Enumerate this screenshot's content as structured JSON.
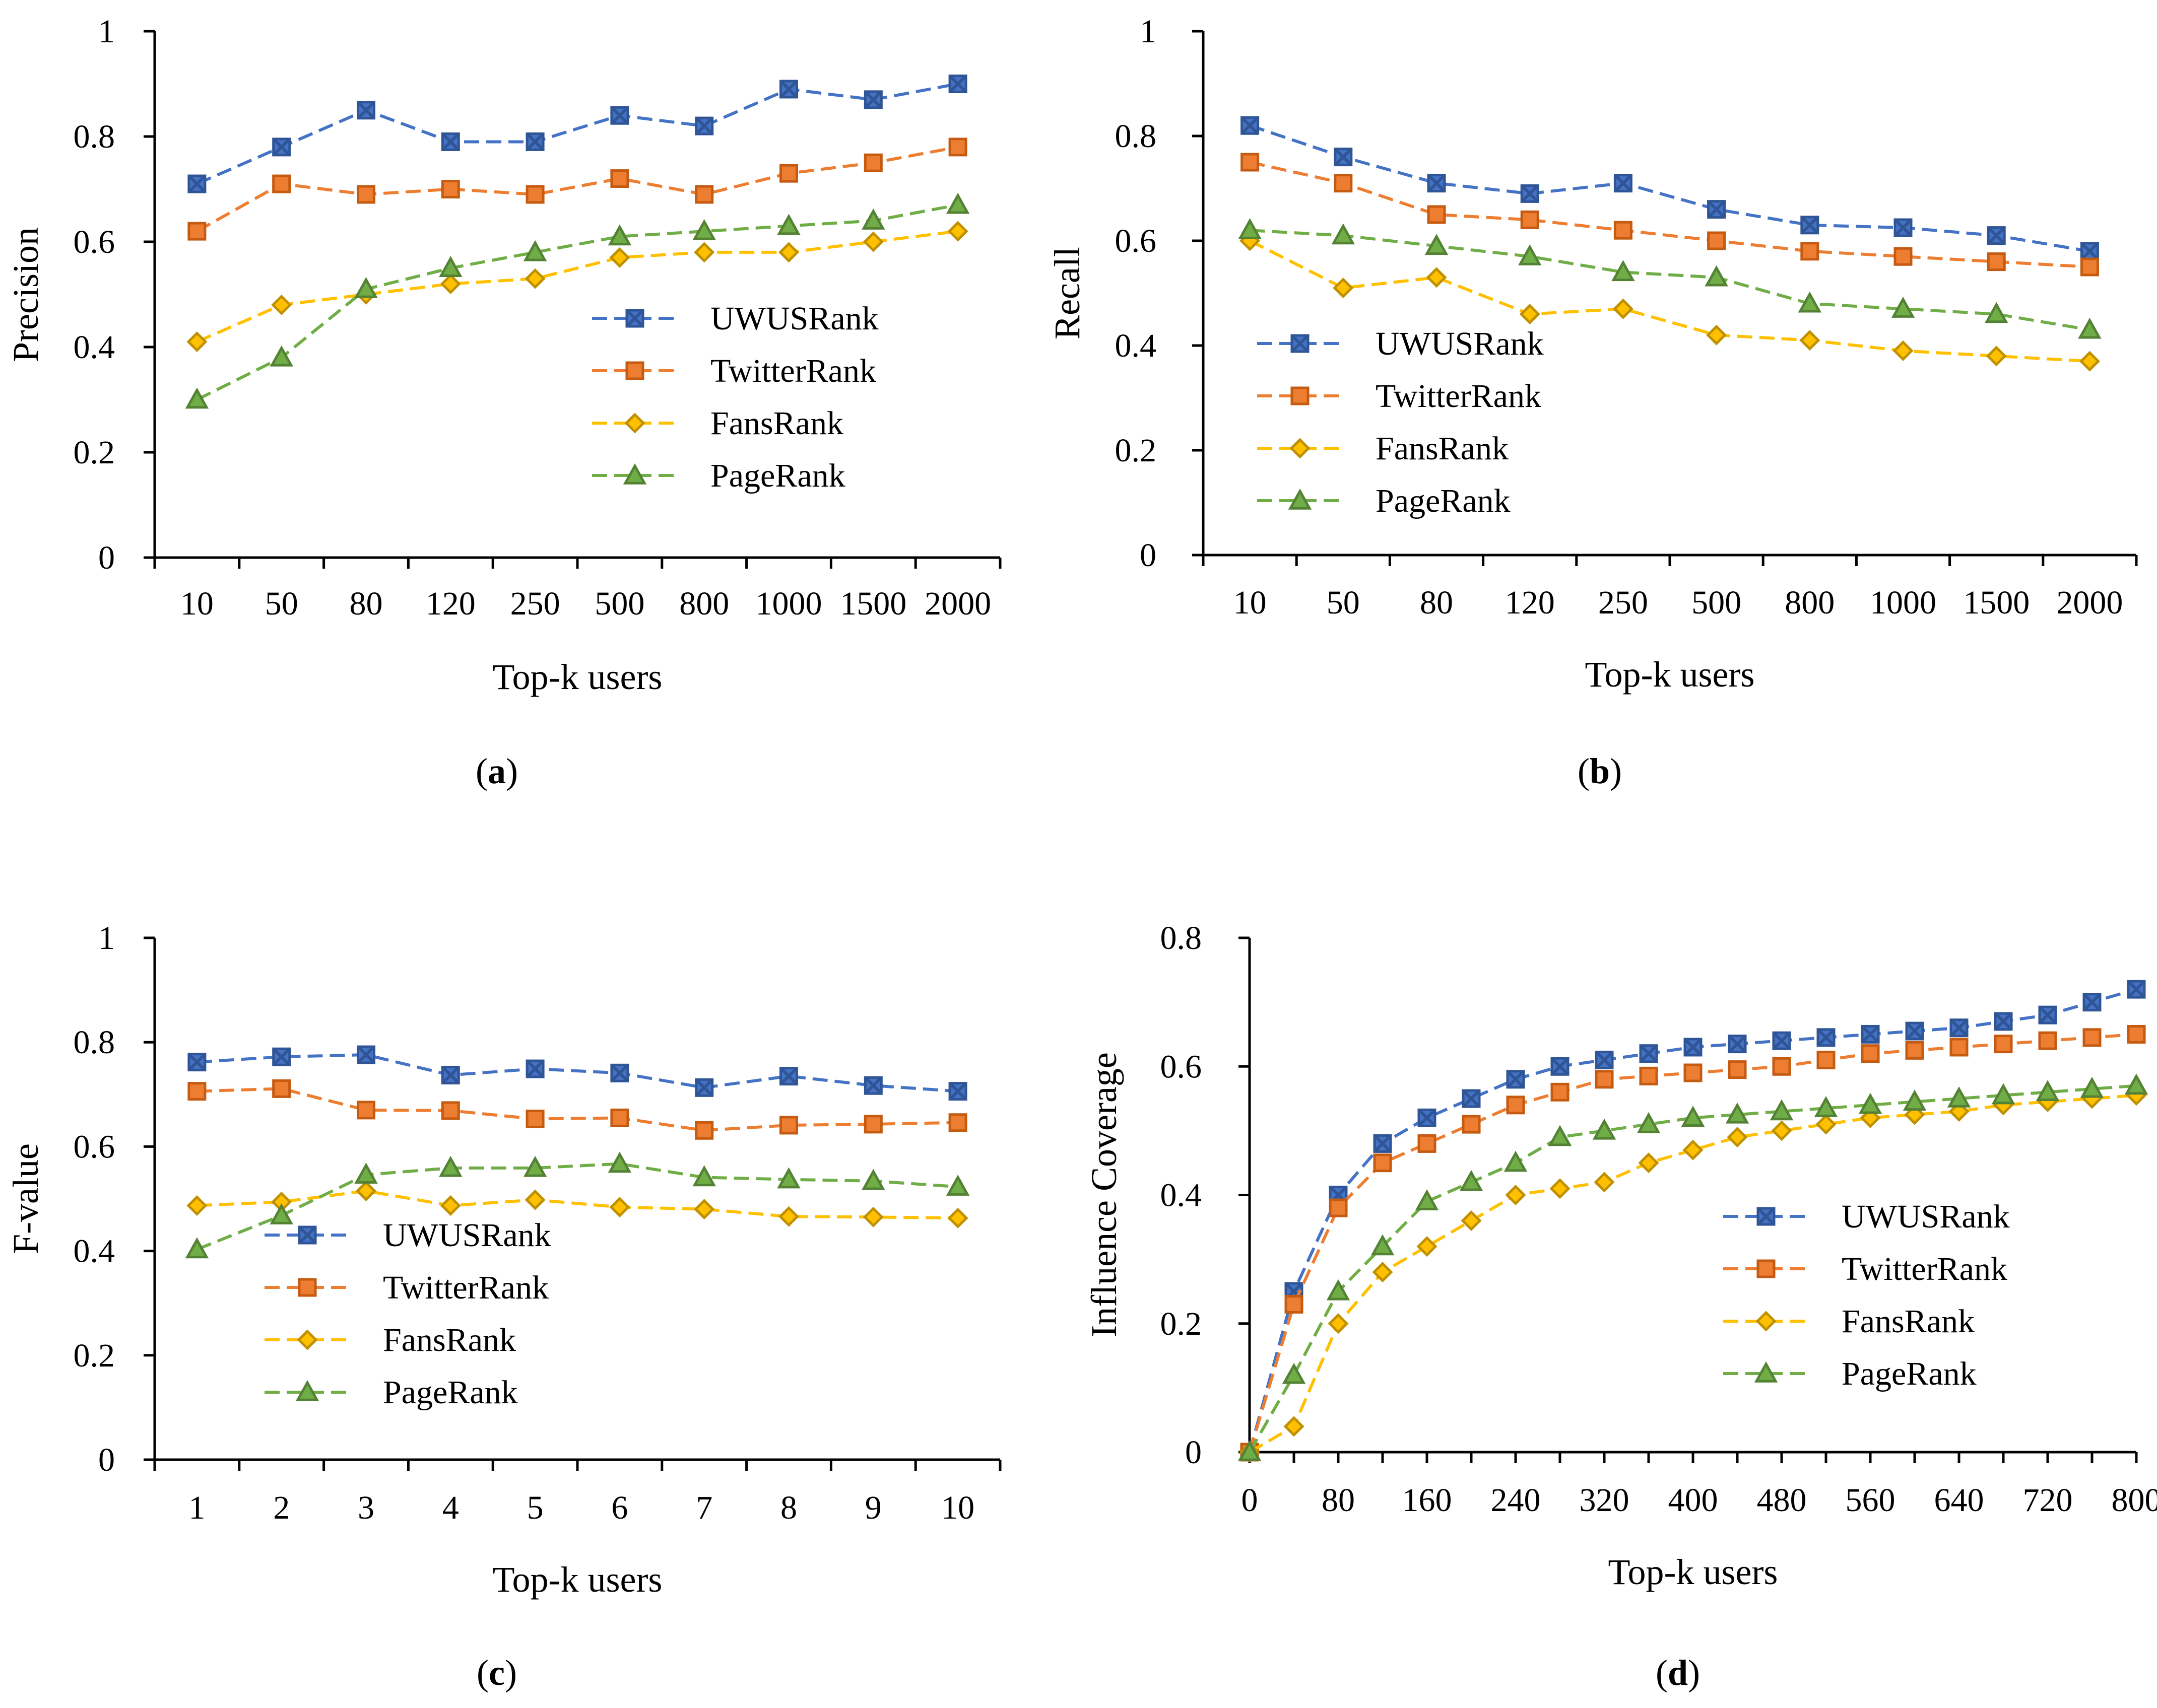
{
  "colors": {
    "UWUSRank": "#4472C4",
    "TwitterRank": "#ED7D31",
    "FansRank": "#FFC000",
    "PageRank": "#70AD47",
    "UWUSRank_edge": "#2F5597",
    "TwitterRank_edge": "#C55A11",
    "FansRank_edge": "#BF9000",
    "PageRank_edge": "#548235"
  },
  "chart_data": [
    {
      "id": "a",
      "type": "line",
      "panel_label": "a",
      "xlabel": "Top-k users",
      "ylabel": "Precision",
      "x_kind": "category",
      "categories": [
        "10",
        "50",
        "80",
        "120",
        "250",
        "500",
        "800",
        "1000",
        "1500",
        "2000"
      ],
      "ylim": [
        0,
        1
      ],
      "yticks": [
        0,
        0.2,
        0.4,
        0.6,
        0.8,
        1
      ],
      "ytick_labels": [
        "0",
        "0.2",
        "0.4",
        "0.6",
        "0.8",
        "1"
      ],
      "legend_position": "center-right",
      "series": [
        {
          "name": "UWUSRank",
          "marker": "x-square",
          "values": [
            0.71,
            0.78,
            0.85,
            0.79,
            0.79,
            0.84,
            0.82,
            0.89,
            0.87,
            0.9
          ]
        },
        {
          "name": "TwitterRank",
          "marker": "square",
          "values": [
            0.62,
            0.71,
            0.69,
            0.7,
            0.69,
            0.72,
            0.69,
            0.73,
            0.75,
            0.78
          ]
        },
        {
          "name": "FansRank",
          "marker": "diamond",
          "values": [
            0.41,
            0.48,
            0.5,
            0.52,
            0.53,
            0.57,
            0.58,
            0.58,
            0.6,
            0.62
          ]
        },
        {
          "name": "PageRank",
          "marker": "triangle",
          "values": [
            0.3,
            0.38,
            0.51,
            0.55,
            0.58,
            0.61,
            0.62,
            0.63,
            0.64,
            0.67
          ]
        }
      ]
    },
    {
      "id": "b",
      "type": "line",
      "panel_label": "b",
      "xlabel": "Top-k users",
      "ylabel": "Recall",
      "x_kind": "category",
      "categories": [
        "10",
        "50",
        "80",
        "120",
        "250",
        "500",
        "800",
        "1000",
        "1500",
        "2000"
      ],
      "ylim": [
        0,
        1
      ],
      "yticks": [
        0,
        0.2,
        0.4,
        0.6,
        0.8,
        1
      ],
      "ytick_labels": [
        "0",
        "0.2",
        "0.4",
        "0.6",
        "0.8",
        "1"
      ],
      "legend_position": "lower-left",
      "series": [
        {
          "name": "UWUSRank",
          "marker": "x-square",
          "values": [
            0.82,
            0.76,
            0.71,
            0.69,
            0.71,
            0.66,
            0.63,
            0.625,
            0.61,
            0.58
          ]
        },
        {
          "name": "TwitterRank",
          "marker": "square",
          "values": [
            0.75,
            0.71,
            0.65,
            0.64,
            0.62,
            0.6,
            0.58,
            0.57,
            0.56,
            0.55
          ]
        },
        {
          "name": "FansRank",
          "marker": "diamond",
          "values": [
            0.6,
            0.51,
            0.53,
            0.46,
            0.47,
            0.42,
            0.41,
            0.39,
            0.38,
            0.37
          ]
        },
        {
          "name": "PageRank",
          "marker": "triangle",
          "values": [
            0.62,
            0.61,
            0.59,
            0.57,
            0.54,
            0.53,
            0.48,
            0.47,
            0.46,
            0.43
          ]
        }
      ]
    },
    {
      "id": "c",
      "type": "line",
      "panel_label": "c",
      "xlabel": "Top-k users",
      "ylabel": "F-value",
      "x_kind": "category",
      "categories": [
        "1",
        "2",
        "3",
        "4",
        "5",
        "6",
        "7",
        "8",
        "9",
        "10"
      ],
      "ylim": [
        0,
        1
      ],
      "yticks": [
        0,
        0.2,
        0.4,
        0.6,
        0.8,
        1
      ],
      "ytick_labels": [
        "0",
        "0.2",
        "0.4",
        "0.6",
        "0.8",
        "1"
      ],
      "legend_position": "lower-left",
      "series": [
        {
          "name": "UWUSRank",
          "marker": "x-square",
          "values": [
            0.762,
            0.772,
            0.776,
            0.737,
            0.749,
            0.741,
            0.713,
            0.735,
            0.717,
            0.706
          ]
        },
        {
          "name": "TwitterRank",
          "marker": "square",
          "values": [
            0.706,
            0.711,
            0.67,
            0.669,
            0.653,
            0.655,
            0.631,
            0.641,
            0.643,
            0.646
          ]
        },
        {
          "name": "FansRank",
          "marker": "diamond",
          "values": [
            0.487,
            0.494,
            0.515,
            0.487,
            0.498,
            0.484,
            0.48,
            0.466,
            0.465,
            0.463
          ]
        },
        {
          "name": "PageRank",
          "marker": "triangle",
          "values": [
            0.403,
            0.468,
            0.546,
            0.559,
            0.559,
            0.567,
            0.541,
            0.537,
            0.534,
            0.523
          ]
        }
      ]
    },
    {
      "id": "d",
      "type": "line",
      "panel_label": "d",
      "xlabel": "Top-k users",
      "ylabel": "Influence Coverage",
      "x_kind": "numeric",
      "xlim": [
        0,
        800
      ],
      "xticks": [
        0,
        80,
        160,
        240,
        320,
        400,
        480,
        560,
        640,
        720,
        800
      ],
      "xtick_labels": [
        "0",
        "80",
        "160",
        "240",
        "320",
        "400",
        "480",
        "560",
        "640",
        "720",
        "800"
      ],
      "x": [
        0,
        40,
        80,
        120,
        160,
        200,
        240,
        280,
        320,
        360,
        400,
        440,
        480,
        520,
        560,
        600,
        640,
        680,
        720,
        760,
        800
      ],
      "ylim": [
        0,
        0.8
      ],
      "yticks": [
        0,
        0.2,
        0.4,
        0.6,
        0.8
      ],
      "ytick_labels": [
        "0",
        "0.2",
        "0.4",
        "0.6",
        "0.8"
      ],
      "legend_position": "lower-right",
      "series": [
        {
          "name": "UWUSRank",
          "marker": "x-square",
          "values": [
            0,
            0.25,
            0.4,
            0.48,
            0.52,
            0.55,
            0.58,
            0.6,
            0.61,
            0.62,
            0.63,
            0.635,
            0.64,
            0.645,
            0.65,
            0.655,
            0.66,
            0.67,
            0.68,
            0.7,
            0.72
          ]
        },
        {
          "name": "TwitterRank",
          "marker": "square",
          "values": [
            0,
            0.23,
            0.38,
            0.45,
            0.48,
            0.51,
            0.54,
            0.56,
            0.58,
            0.585,
            0.59,
            0.595,
            0.6,
            0.61,
            0.62,
            0.625,
            0.63,
            0.635,
            0.64,
            0.645,
            0.65
          ]
        },
        {
          "name": "FansRank",
          "marker": "diamond",
          "values": [
            0,
            0.04,
            0.2,
            0.28,
            0.32,
            0.36,
            0.4,
            0.41,
            0.42,
            0.45,
            0.47,
            0.49,
            0.5,
            0.51,
            0.52,
            0.525,
            0.53,
            0.54,
            0.545,
            0.55,
            0.555
          ]
        },
        {
          "name": "PageRank",
          "marker": "triangle",
          "values": [
            0,
            0.12,
            0.25,
            0.32,
            0.39,
            0.42,
            0.45,
            0.49,
            0.5,
            0.51,
            0.52,
            0.525,
            0.53,
            0.535,
            0.54,
            0.545,
            0.55,
            0.555,
            0.56,
            0.565,
            0.57
          ]
        }
      ]
    }
  ]
}
